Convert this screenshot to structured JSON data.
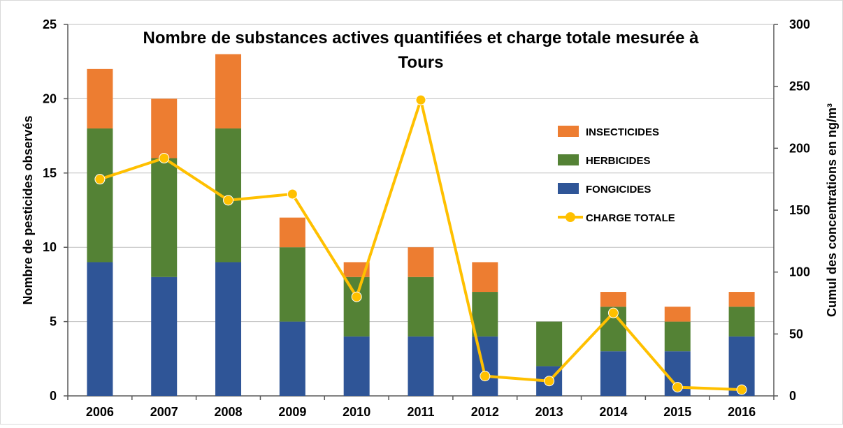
{
  "chart_data": {
    "type": "bar",
    "stacked": true,
    "title": "Nombre de substances actives quantifiées et charge totale mesurée à Tours",
    "title_lines": [
      "Nombre de substances actives quantifiées et charge totale mesurée à",
      "Tours"
    ],
    "categories": [
      "2006",
      "2007",
      "2008",
      "2009",
      "2010",
      "2011",
      "2012",
      "2013",
      "2014",
      "2015",
      "2016"
    ],
    "series": [
      {
        "name": "Fongicides",
        "legend_label": "FONGICIDES",
        "color": "#2F5597",
        "axis": "left",
        "values": [
          9,
          8,
          9,
          5,
          4,
          4,
          4,
          2,
          3,
          3,
          4
        ]
      },
      {
        "name": "Herbicides",
        "legend_label": "HERBICIDES",
        "color": "#548235",
        "axis": "left",
        "values": [
          9,
          8,
          9,
          5,
          4,
          4,
          3,
          3,
          3,
          2,
          2
        ]
      },
      {
        "name": "Insecticides",
        "legend_label": "INSECTICIDES",
        "color": "#ED7D31",
        "axis": "left",
        "values": [
          4,
          4,
          5,
          2,
          1,
          2,
          2,
          0,
          1,
          1,
          1
        ]
      },
      {
        "name": "Charge totale",
        "legend_label": "CHARGE TOTALE",
        "color": "#FFC000",
        "axis": "right",
        "type": "line",
        "values": [
          175,
          192,
          158,
          163,
          80,
          239,
          16,
          12,
          67,
          7,
          5
        ]
      }
    ],
    "ylabel": "Nombre de pesticides observés",
    "y2label": "Cumul des concentrations en ng/m³",
    "ylim": [
      0,
      25
    ],
    "y2lim": [
      0,
      300
    ],
    "yticks": [
      0,
      5,
      10,
      15,
      20,
      25
    ],
    "y2ticks": [
      0,
      50,
      100,
      150,
      200,
      250,
      300
    ],
    "grid": true,
    "legend_order": [
      "Insecticides",
      "Herbicides",
      "Fongicides",
      "Charge totale"
    ],
    "legend_position": "right"
  }
}
